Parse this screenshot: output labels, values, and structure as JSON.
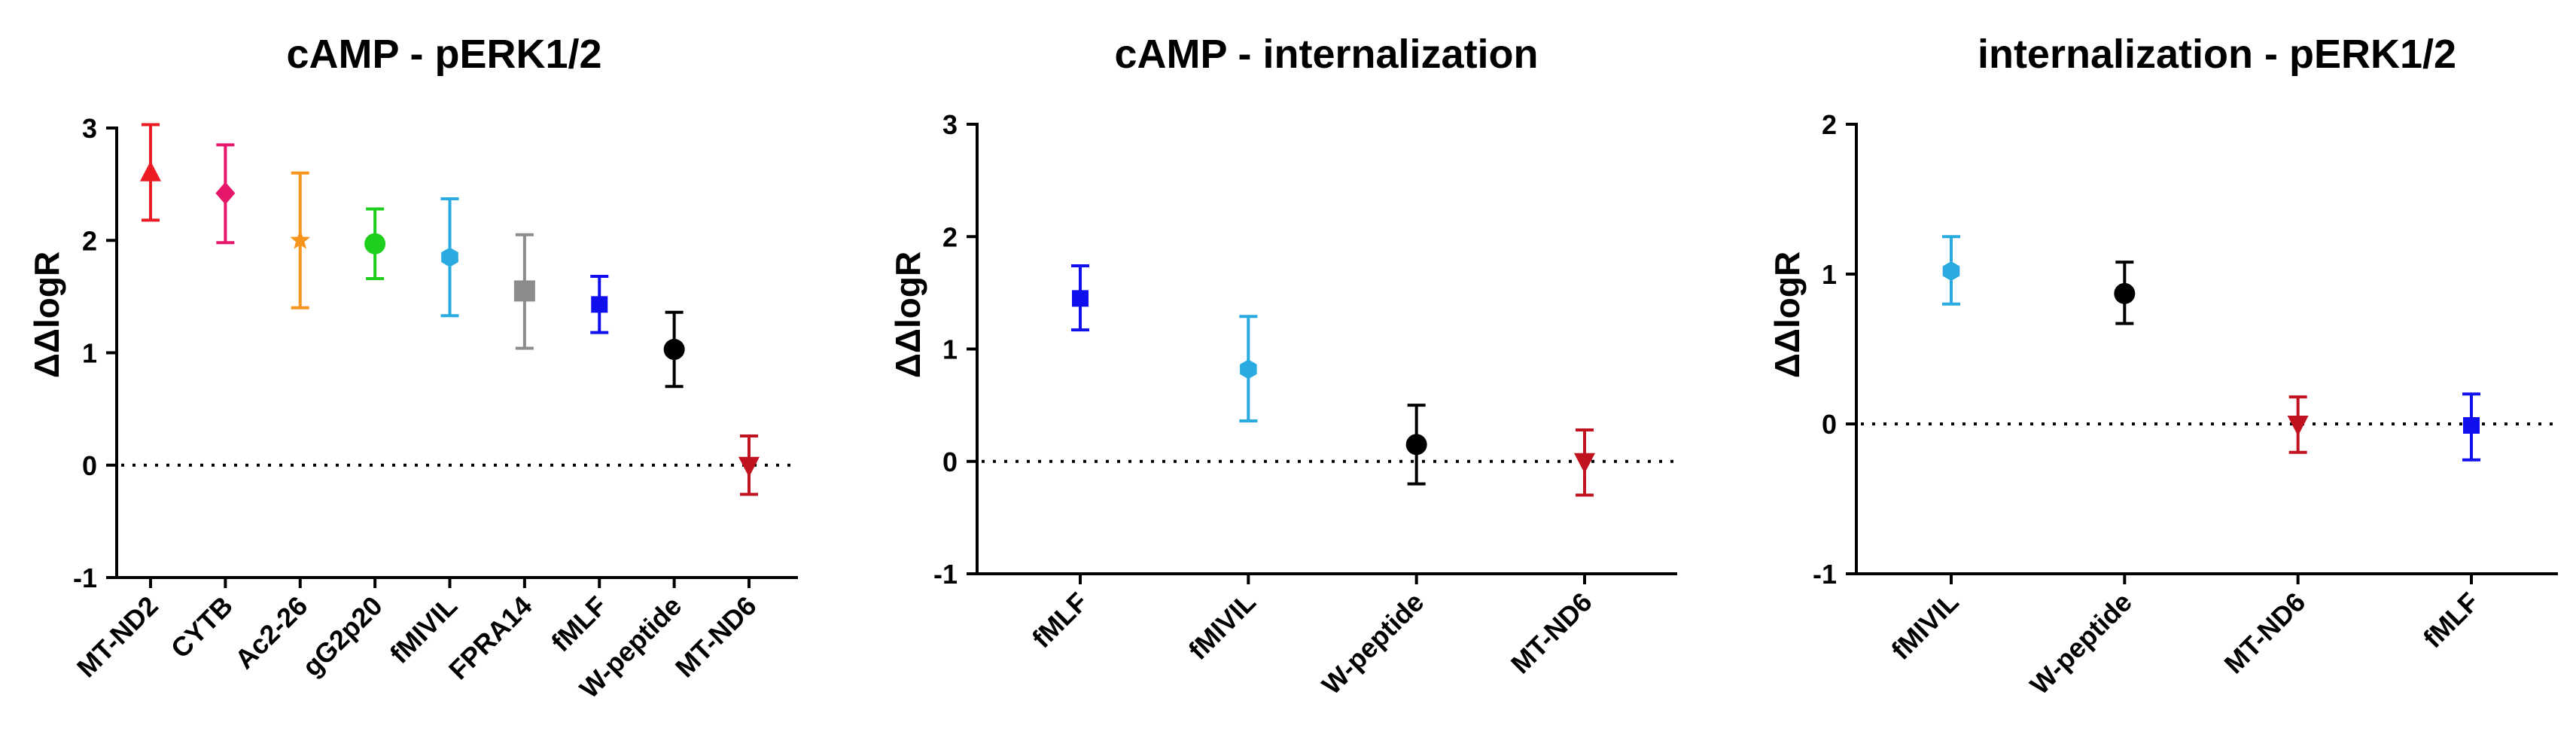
{
  "chart_data": [
    {
      "type": "errorbar",
      "title": "cAMP - pERK1/2",
      "ylabel": "ΔΔlogR",
      "xlabel": "",
      "ylim": [
        -1,
        3
      ],
      "yticks": [
        -1,
        0,
        1,
        2,
        3
      ],
      "reference_line": 0,
      "series": [
        {
          "name": "MT-ND2",
          "value": 2.6,
          "low": 2.18,
          "high": 3.03,
          "color": "#ed1c24",
          "marker": "triangle-up"
        },
        {
          "name": "CYTB",
          "value": 2.42,
          "low": 1.98,
          "high": 2.85,
          "color": "#e6176b",
          "marker": "diamond"
        },
        {
          "name": "Ac2-26",
          "value": 2.0,
          "low": 1.4,
          "high": 2.6,
          "color": "#f7941d",
          "marker": "star"
        },
        {
          "name": "gG2p20",
          "value": 1.97,
          "low": 1.66,
          "high": 2.28,
          "color": "#1ecf1e",
          "marker": "circle"
        },
        {
          "name": "fMIVIL",
          "value": 1.85,
          "low": 1.33,
          "high": 2.37,
          "color": "#29abe2",
          "marker": "hexagon"
        },
        {
          "name": "FPRA14",
          "value": 1.55,
          "low": 1.04,
          "high": 2.05,
          "color": "#8c8c8c",
          "marker": "square"
        },
        {
          "name": "fMLF",
          "value": 1.43,
          "low": 1.18,
          "high": 1.68,
          "color": "#1010ee",
          "marker": "square-small"
        },
        {
          "name": "W-peptide",
          "value": 1.03,
          "low": 0.7,
          "high": 1.36,
          "color": "#000000",
          "marker": "circle"
        },
        {
          "name": "MT-ND6",
          "value": 0.0,
          "low": -0.26,
          "high": 0.26,
          "color": "#c1121f",
          "marker": "triangle-down"
        }
      ]
    },
    {
      "type": "errorbar",
      "title": "cAMP - internalization",
      "ylabel": "ΔΔlogR",
      "xlabel": "",
      "ylim": [
        -1,
        3
      ],
      "yticks": [
        -1,
        0,
        1,
        2,
        3
      ],
      "reference_line": 0,
      "series": [
        {
          "name": "fMLF",
          "value": 1.45,
          "low": 1.17,
          "high": 1.74,
          "color": "#1010ee",
          "marker": "square-small"
        },
        {
          "name": "fMIVIL",
          "value": 0.82,
          "low": 0.36,
          "high": 1.29,
          "color": "#29abe2",
          "marker": "hexagon"
        },
        {
          "name": "W-peptide",
          "value": 0.15,
          "low": -0.2,
          "high": 0.5,
          "color": "#000000",
          "marker": "circle"
        },
        {
          "name": "MT-ND6",
          "value": 0.0,
          "low": -0.3,
          "high": 0.28,
          "color": "#c1121f",
          "marker": "triangle-down"
        }
      ]
    },
    {
      "type": "errorbar",
      "title": "internalization - pERK1/2",
      "ylabel": "ΔΔlogR",
      "xlabel": "",
      "ylim": [
        -1,
        2
      ],
      "yticks": [
        -1,
        0,
        1,
        2
      ],
      "reference_line": 0,
      "series": [
        {
          "name": "fMIVIL",
          "value": 1.02,
          "low": 0.8,
          "high": 1.25,
          "color": "#29abe2",
          "marker": "hexagon"
        },
        {
          "name": "W-peptide",
          "value": 0.87,
          "low": 0.67,
          "high": 1.08,
          "color": "#000000",
          "marker": "circle"
        },
        {
          "name": "MT-ND6",
          "value": 0.0,
          "low": -0.19,
          "high": 0.18,
          "color": "#c1121f",
          "marker": "triangle-down"
        },
        {
          "name": "fMLF",
          "value": -0.01,
          "low": -0.24,
          "high": 0.2,
          "color": "#1010ee",
          "marker": "square-small"
        }
      ]
    }
  ]
}
